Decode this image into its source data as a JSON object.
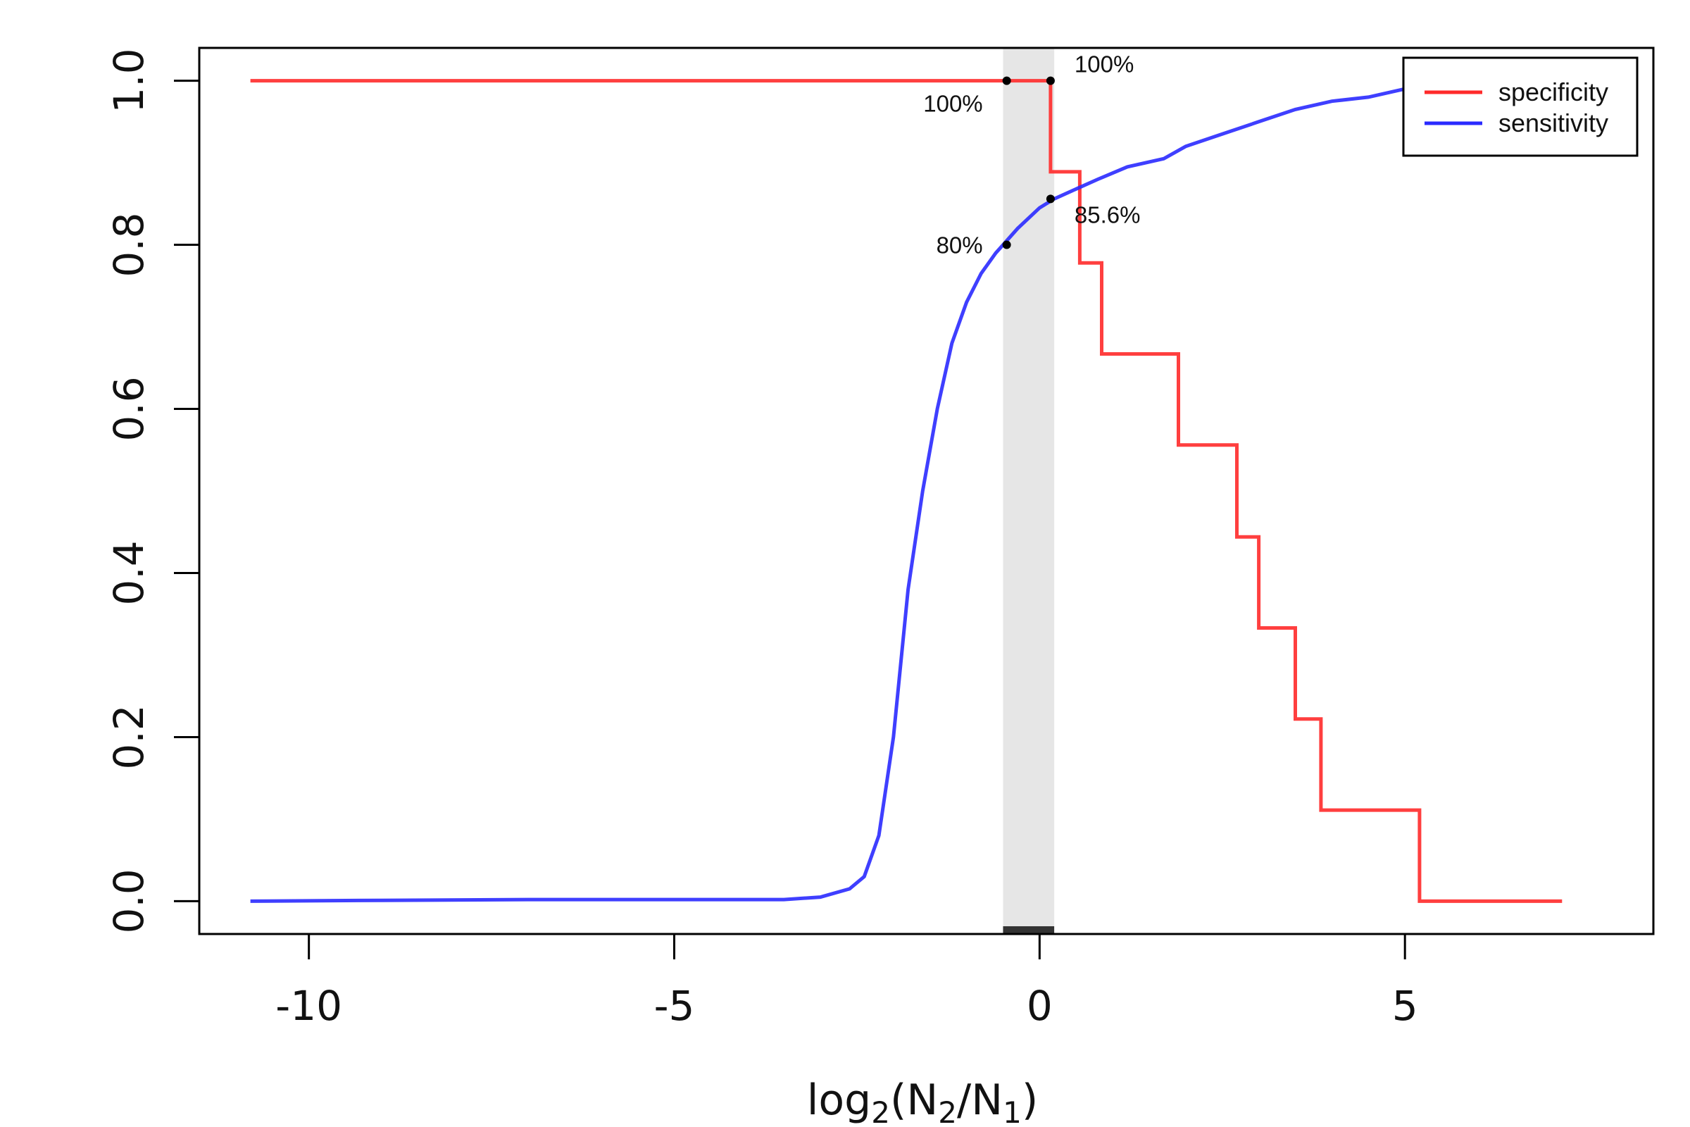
{
  "chart_data": {
    "type": "line",
    "title": "",
    "xlabel": {
      "prefix": "log",
      "sub1": "2",
      "mid1": "(N",
      "sub2": "2",
      "mid2": "/N",
      "sub3": "1",
      "suffix": ")"
    },
    "ylabel": "",
    "xlim": [
      -11.5,
      8.4
    ],
    "ylim": [
      -0.04,
      1.04
    ],
    "xticks": [
      -10,
      -5,
      0,
      5
    ],
    "xtick_labels": [
      "-10",
      "-5",
      "0",
      "5"
    ],
    "yticks": [
      0,
      0.2,
      0.4,
      0.6,
      0.8,
      1
    ],
    "ytick_labels": [
      "0.0",
      "0.2",
      "0.4",
      "0.6",
      "0.8",
      "1.0"
    ],
    "grid": false,
    "legend_position": "top-right",
    "colors": {
      "specificity": "#ff2a2a",
      "sensitivity": "#2a2aff",
      "band": "#e6e6e6",
      "band_bar": "#333333"
    },
    "highlight_band": [
      -0.5,
      0.2
    ],
    "series": [
      {
        "name": "specificity",
        "step": true,
        "x": [
          -10.8,
          0.15,
          0.15,
          0.55,
          0.55,
          0.85,
          0.85,
          1.9,
          1.9,
          2.7,
          2.7,
          3.0,
          3.0,
          3.5,
          3.5,
          3.85,
          3.85,
          5.2,
          5.2,
          7.15
        ],
        "y": [
          1.0,
          1.0,
          0.889,
          0.889,
          0.778,
          0.778,
          0.667,
          0.667,
          0.556,
          0.556,
          0.444,
          0.444,
          0.333,
          0.333,
          0.222,
          0.222,
          0.111,
          0.111,
          0.0,
          0.0
        ]
      },
      {
        "name": "sensitivity",
        "step": false,
        "x": [
          -10.8,
          -9,
          -7,
          -5,
          -3.5,
          -3.0,
          -2.6,
          -2.4,
          -2.2,
          -2.0,
          -1.8,
          -1.6,
          -1.4,
          -1.2,
          -1.0,
          -0.8,
          -0.6,
          -0.5,
          -0.3,
          0.0,
          0.2,
          0.5,
          0.8,
          1.2,
          1.7,
          2.0,
          2.5,
          3.0,
          3.5,
          4.0,
          4.5,
          5.0,
          5.5
        ],
        "y": [
          0.0,
          0.001,
          0.002,
          0.002,
          0.002,
          0.005,
          0.015,
          0.03,
          0.08,
          0.2,
          0.38,
          0.5,
          0.6,
          0.68,
          0.73,
          0.765,
          0.79,
          0.8,
          0.82,
          0.845,
          0.856,
          0.868,
          0.88,
          0.895,
          0.905,
          0.92,
          0.935,
          0.95,
          0.965,
          0.975,
          0.98,
          0.99,
          0.995
        ]
      }
    ],
    "annotations": [
      {
        "x": -0.45,
        "y": 1.0,
        "text": "100%",
        "anchor": "end",
        "dx": -34,
        "dy": 44
      },
      {
        "x": 0.15,
        "y": 1.0,
        "text": "100%",
        "anchor": "start",
        "dx": 34,
        "dy": -12
      },
      {
        "x": -0.45,
        "y": 0.8,
        "text": "80%",
        "anchor": "end",
        "dx": -34,
        "dy": 12
      },
      {
        "x": 0.15,
        "y": 0.856,
        "text": "85.6%",
        "anchor": "start",
        "dx": 34,
        "dy": 34
      }
    ]
  }
}
